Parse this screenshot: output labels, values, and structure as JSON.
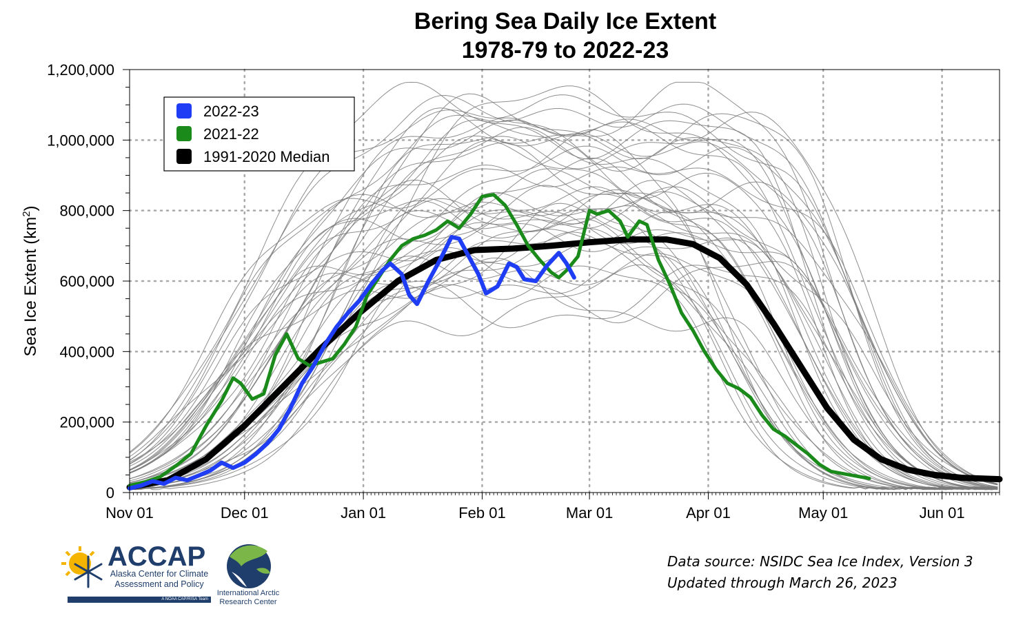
{
  "title_line1": "Bering Sea Daily Ice Extent",
  "title_line2": "1978-79 to 2022-23",
  "source_note": "Data source: NSIDC Sea Ice Index, Version 3",
  "updated_note": "Updated through March 26, 2023",
  "logos": {
    "accap_name": "ACCAP",
    "accap_subtitle_line1": "Alaska Center for Climate",
    "accap_subtitle_line2": "Assessment and Policy",
    "accap_tag": "A NOAA CAP/RISA Team",
    "iarc_line1": "International Arctic",
    "iarc_line2": "Research Center"
  },
  "colors": {
    "series_2022_23": "#1f3df5",
    "series_2021_22": "#1a8a1a",
    "median": "#000000",
    "history": "#7a7a7a",
    "grid": "#a8a8a8"
  },
  "chart_data": {
    "type": "line",
    "title": "Bering Sea Daily Ice Extent 1978-79 to 2022-23",
    "ylabel": "Sea Ice Extent (km²)",
    "ylabel_main": "Sea Ice Extent (km",
    "ylabel_sup": "2",
    "ylabel_close": ")",
    "xlabel": "",
    "ylim": [
      0,
      1200000
    ],
    "xlim_days_from_nov01": [
      0,
      227
    ],
    "x_ticks": [
      {
        "label": "Nov 01",
        "day": 0
      },
      {
        "label": "Dec 01",
        "day": 30
      },
      {
        "label": "Jan 01",
        "day": 61
      },
      {
        "label": "Feb 01",
        "day": 92
      },
      {
        "label": "Mar 01",
        "day": 120
      },
      {
        "label": "Apr 01",
        "day": 151
      },
      {
        "label": "May 01",
        "day": 181
      },
      {
        "label": "Jun 01",
        "day": 212
      }
    ],
    "y_ticks": [
      {
        "label": "0",
        "value": 0
      },
      {
        "label": "200,000",
        "value": 200000
      },
      {
        "label": "400,000",
        "value": 400000
      },
      {
        "label": "600,000",
        "value": 600000
      },
      {
        "label": "800,000",
        "value": 800000
      },
      {
        "label": "1,000,000",
        "value": 1000000
      },
      {
        "label": "1,200,000",
        "value": 1200000
      }
    ],
    "grid": true,
    "legend_position": "top-left",
    "legend": [
      "2022-23",
      "2021-22",
      "1991-2020 Median"
    ],
    "series": [
      {
        "name": "2022-23",
        "color": "#1f3df5",
        "points": [
          [
            0,
            12000
          ],
          [
            3,
            20000
          ],
          [
            6,
            32000
          ],
          [
            9,
            25000
          ],
          [
            12,
            42000
          ],
          [
            15,
            35000
          ],
          [
            18,
            48000
          ],
          [
            21,
            62000
          ],
          [
            24,
            85000
          ],
          [
            27,
            70000
          ],
          [
            30,
            85000
          ],
          [
            33,
            110000
          ],
          [
            36,
            140000
          ],
          [
            39,
            180000
          ],
          [
            42,
            240000
          ],
          [
            45,
            310000
          ],
          [
            48,
            360000
          ],
          [
            51,
            420000
          ],
          [
            54,
            470000
          ],
          [
            57,
            510000
          ],
          [
            60,
            545000
          ],
          [
            63,
            590000
          ],
          [
            66,
            630000
          ],
          [
            68,
            650000
          ],
          [
            71,
            620000
          ],
          [
            73,
            560000
          ],
          [
            75,
            535000
          ],
          [
            78,
            600000
          ],
          [
            81,
            660000
          ],
          [
            84,
            725000
          ],
          [
            86,
            720000
          ],
          [
            88,
            680000
          ],
          [
            91,
            620000
          ],
          [
            93,
            565000
          ],
          [
            96,
            585000
          ],
          [
            99,
            650000
          ],
          [
            101,
            640000
          ],
          [
            103,
            605000
          ],
          [
            106,
            600000
          ],
          [
            109,
            645000
          ],
          [
            112,
            680000
          ],
          [
            114,
            650000
          ],
          [
            116,
            610000
          ]
        ]
      },
      {
        "name": "2021-22",
        "color": "#1a8a1a",
        "points": [
          [
            0,
            20000
          ],
          [
            4,
            30000
          ],
          [
            8,
            45000
          ],
          [
            12,
            75000
          ],
          [
            16,
            110000
          ],
          [
            20,
            190000
          ],
          [
            24,
            260000
          ],
          [
            27,
            325000
          ],
          [
            29,
            310000
          ],
          [
            32,
            265000
          ],
          [
            35,
            280000
          ],
          [
            38,
            390000
          ],
          [
            41,
            450000
          ],
          [
            44,
            380000
          ],
          [
            47,
            360000
          ],
          [
            50,
            370000
          ],
          [
            53,
            380000
          ],
          [
            56,
            420000
          ],
          [
            59,
            470000
          ],
          [
            62,
            560000
          ],
          [
            65,
            610000
          ],
          [
            68,
            660000
          ],
          [
            71,
            700000
          ],
          [
            74,
            720000
          ],
          [
            77,
            730000
          ],
          [
            80,
            745000
          ],
          [
            83,
            770000
          ],
          [
            86,
            750000
          ],
          [
            89,
            790000
          ],
          [
            92,
            840000
          ],
          [
            95,
            845000
          ],
          [
            98,
            815000
          ],
          [
            101,
            760000
          ],
          [
            104,
            700000
          ],
          [
            107,
            660000
          ],
          [
            110,
            625000
          ],
          [
            112,
            610000
          ],
          [
            114,
            630000
          ],
          [
            117,
            670000
          ],
          [
            120,
            800000
          ],
          [
            122,
            790000
          ],
          [
            125,
            800000
          ],
          [
            128,
            770000
          ],
          [
            130,
            725000
          ],
          [
            133,
            770000
          ],
          [
            135,
            760000
          ],
          [
            138,
            660000
          ],
          [
            141,
            590000
          ],
          [
            144,
            510000
          ],
          [
            147,
            460000
          ],
          [
            150,
            400000
          ],
          [
            153,
            350000
          ],
          [
            156,
            310000
          ],
          [
            159,
            295000
          ],
          [
            162,
            270000
          ],
          [
            165,
            220000
          ],
          [
            168,
            180000
          ],
          [
            171,
            160000
          ],
          [
            174,
            135000
          ],
          [
            177,
            110000
          ],
          [
            180,
            80000
          ],
          [
            183,
            60000
          ],
          [
            188,
            50000
          ],
          [
            193,
            40000
          ]
        ]
      },
      {
        "name": "1991-2020 Median",
        "color": "#000000",
        "points": [
          [
            0,
            15000
          ],
          [
            10,
            35000
          ],
          [
            20,
            95000
          ],
          [
            30,
            190000
          ],
          [
            40,
            300000
          ],
          [
            50,
            410000
          ],
          [
            60,
            510000
          ],
          [
            70,
            600000
          ],
          [
            80,
            660000
          ],
          [
            90,
            688000
          ],
          [
            100,
            692000
          ],
          [
            110,
            700000
          ],
          [
            120,
            710000
          ],
          [
            130,
            718000
          ],
          [
            140,
            718000
          ],
          [
            147,
            705000
          ],
          [
            154,
            665000
          ],
          [
            161,
            590000
          ],
          [
            168,
            480000
          ],
          [
            175,
            360000
          ],
          [
            182,
            240000
          ],
          [
            189,
            150000
          ],
          [
            196,
            95000
          ],
          [
            203,
            65000
          ],
          [
            210,
            50000
          ],
          [
            217,
            42000
          ],
          [
            227,
            38000
          ]
        ]
      }
    ]
  }
}
